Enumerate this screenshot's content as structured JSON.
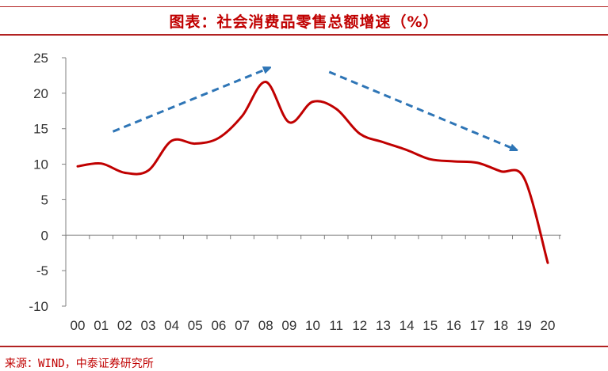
{
  "header": {
    "title": "图表：社会消费品零售总额增速（%）"
  },
  "footer": {
    "source": "来源：WIND，中泰证券研究所"
  },
  "colors": {
    "accent": "#c00000",
    "line": "#c00000",
    "arrow": "#2e75b6",
    "axis": "#7f7f7f"
  },
  "chart_data": {
    "type": "line",
    "title": "图表：社会消费品零售总额增速（%）",
    "xlabel": "",
    "ylabel": "",
    "categories": [
      "00",
      "01",
      "02",
      "03",
      "04",
      "05",
      "06",
      "07",
      "08",
      "09",
      "10",
      "11",
      "12",
      "13",
      "14",
      "15",
      "16",
      "17",
      "18",
      "19",
      "20"
    ],
    "ylim": [
      -10,
      25
    ],
    "yticks": [
      25,
      20,
      15,
      10,
      5,
      0,
      -5,
      -10
    ],
    "ytick_labels": [
      "25",
      "20",
      "15",
      "10",
      "5",
      "0",
      "-5",
      "-10"
    ],
    "grid": false,
    "legend": "none",
    "series": [
      {
        "values": [
          9.7,
          10.1,
          8.8,
          9.1,
          13.3,
          12.9,
          13.7,
          16.8,
          21.6,
          15.9,
          18.8,
          17.8,
          14.3,
          13.1,
          12.0,
          10.7,
          10.4,
          10.2,
          9.0,
          8.0,
          -3.9
        ]
      }
    ],
    "annotations": [
      {
        "type": "dashed-arrow",
        "direction": "up",
        "from": {
          "x": 1.5,
          "y": 14.6
        },
        "to": {
          "x": 8.1,
          "y": 23.5
        }
      },
      {
        "type": "dashed-arrow",
        "direction": "down",
        "from": {
          "x": 10.7,
          "y": 23.0
        },
        "to": {
          "x": 18.6,
          "y": 12.1
        }
      }
    ]
  }
}
